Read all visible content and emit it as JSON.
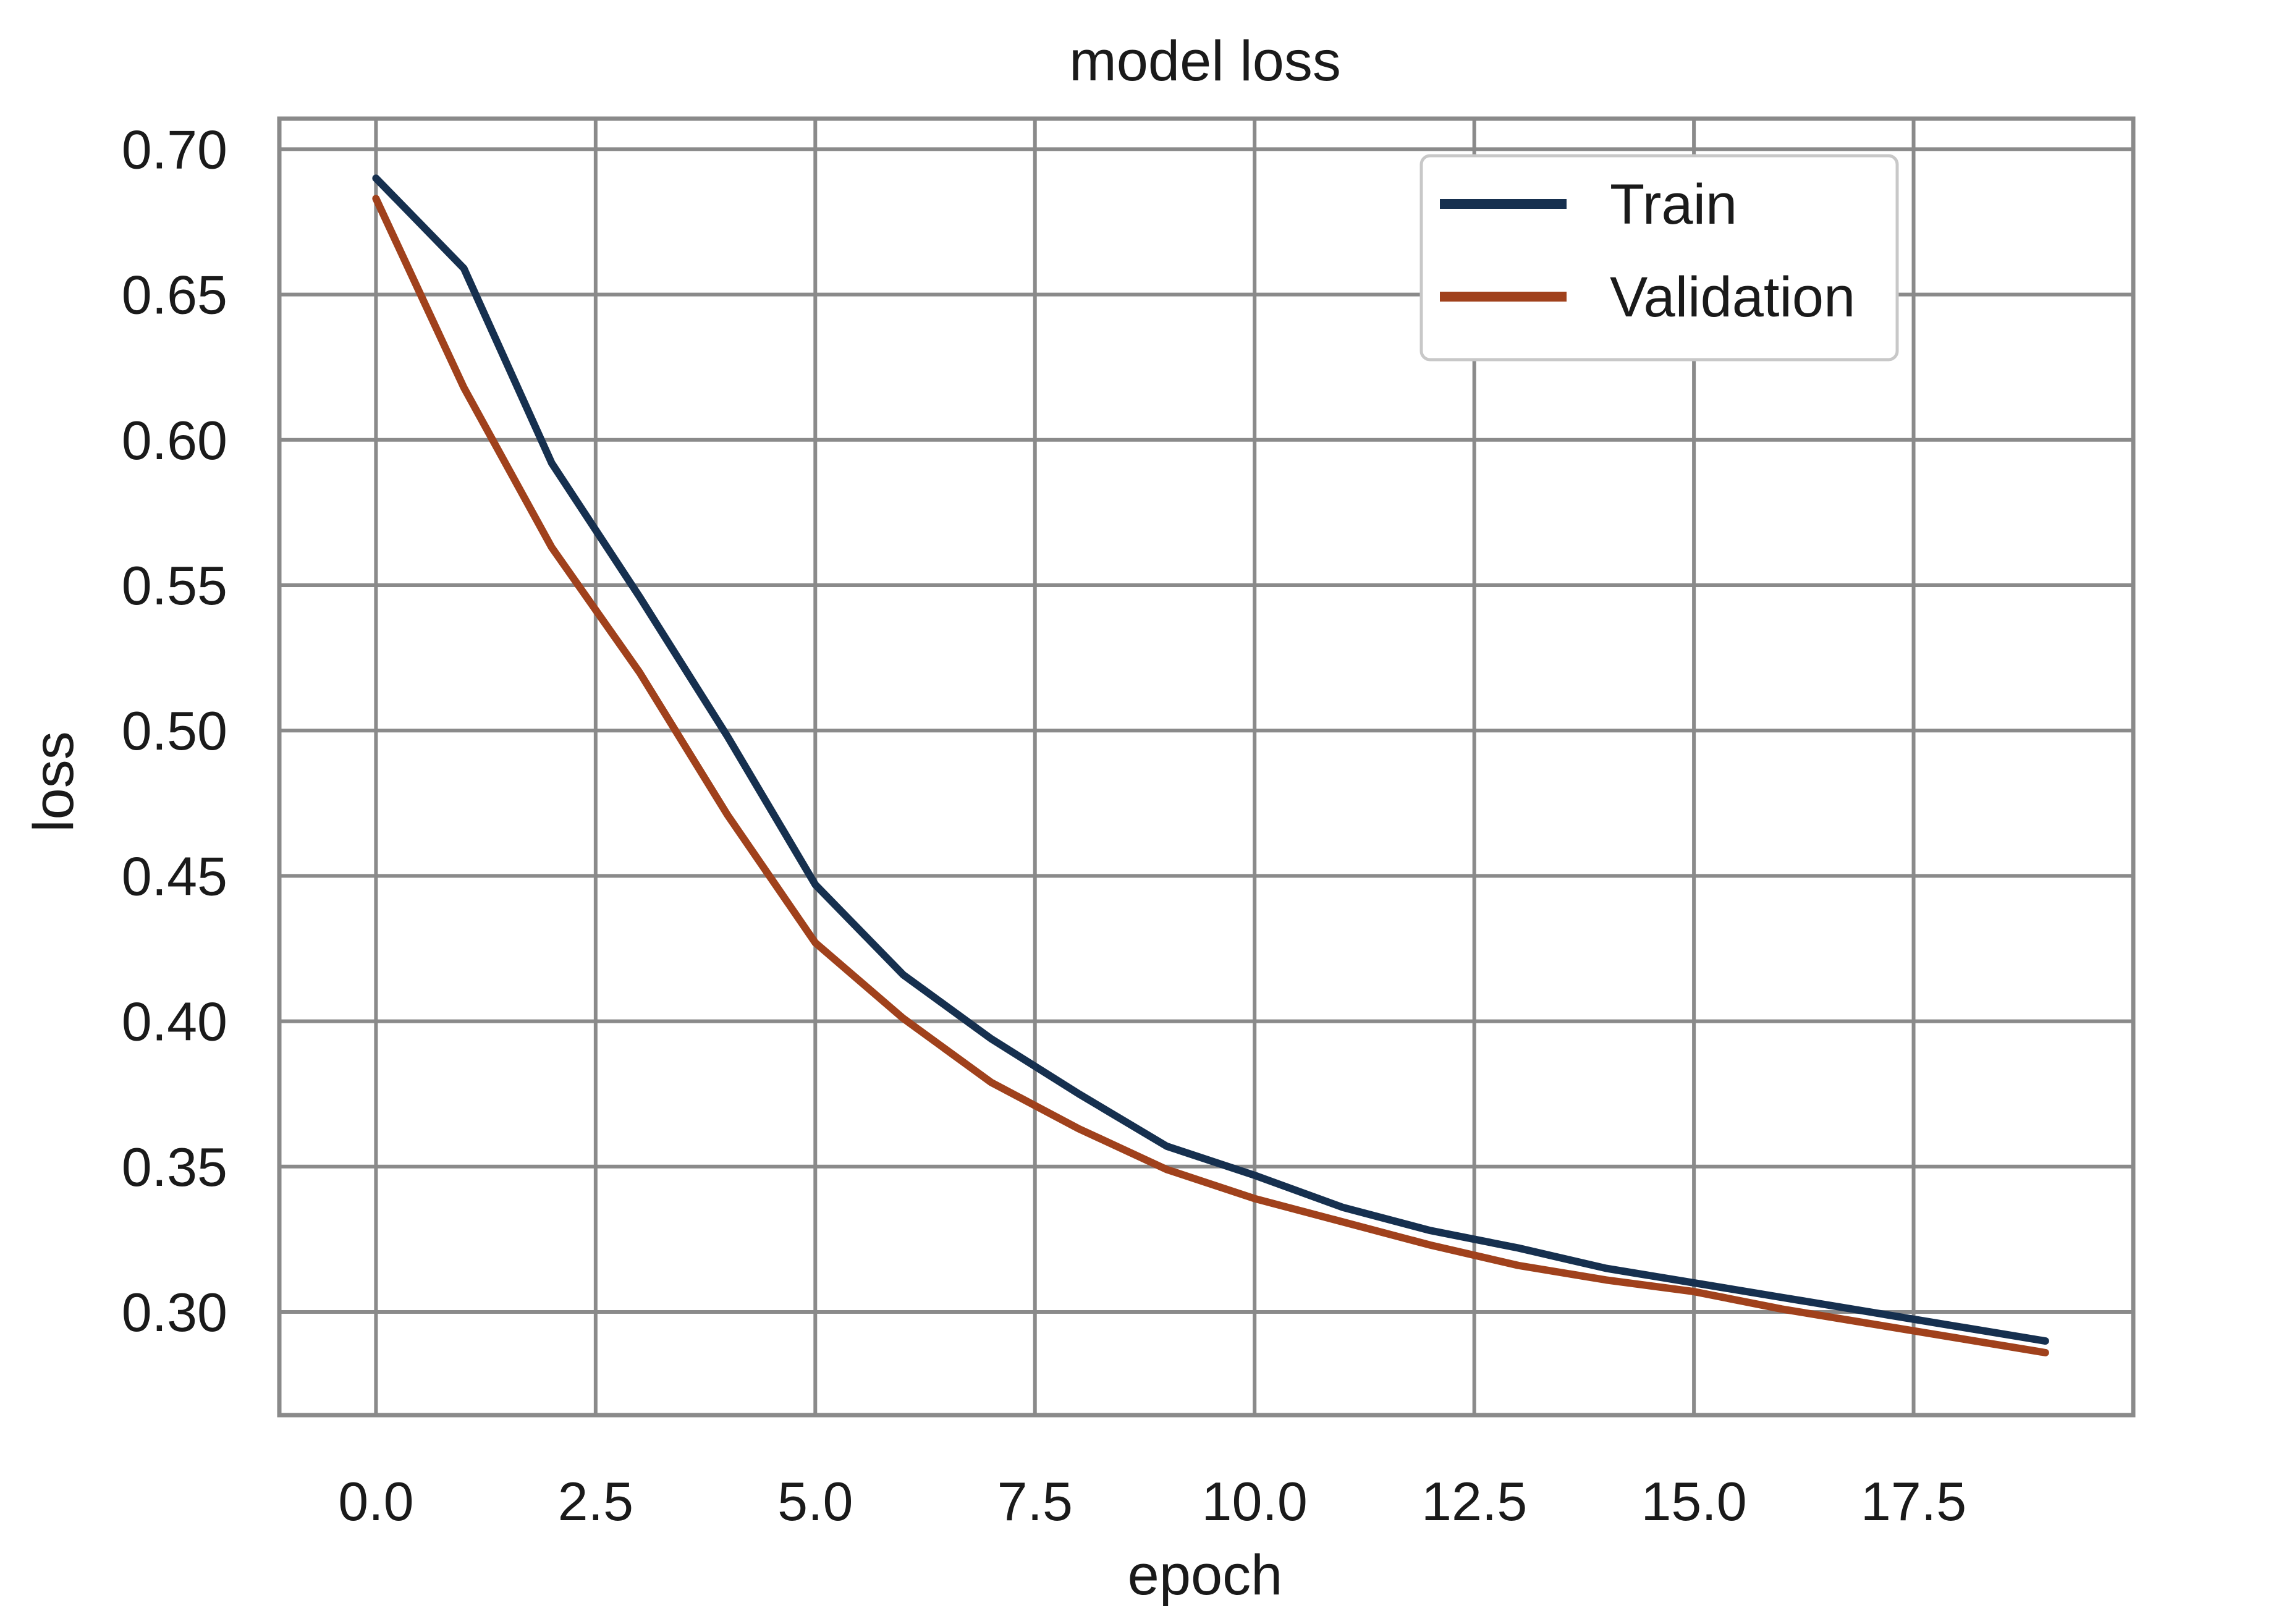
{
  "chart_data": {
    "type": "line",
    "title": "model loss",
    "xlabel": "epoch",
    "ylabel": "loss",
    "xlim": [
      -1.1,
      20.0
    ],
    "ylim": [
      0.2645,
      0.7105
    ],
    "xticks": [
      0.0,
      2.5,
      5.0,
      7.5,
      10.0,
      12.5,
      15.0,
      17.5
    ],
    "xtick_labels": [
      "0.0",
      "2.5",
      "5.0",
      "7.5",
      "10.0",
      "12.5",
      "15.0",
      "17.5"
    ],
    "yticks": [
      0.3,
      0.35,
      0.4,
      0.45,
      0.5,
      0.55,
      0.6,
      0.65,
      0.7
    ],
    "ytick_labels": [
      "0.30",
      "0.35",
      "0.40",
      "0.45",
      "0.50",
      "0.55",
      "0.60",
      "0.65",
      "0.70"
    ],
    "grid": true,
    "legend_position": "top-right",
    "x": [
      0,
      1,
      2,
      3,
      4,
      5,
      6,
      7,
      8,
      9,
      10,
      11,
      12,
      13,
      14,
      15,
      16,
      17,
      18,
      19
    ],
    "series": [
      {
        "name": "Train",
        "color": "#16304f",
        "values": [
          0.69,
          0.659,
          0.592,
          0.546,
          0.498,
          0.447,
          0.416,
          0.394,
          0.375,
          0.357,
          0.347,
          0.336,
          0.328,
          0.322,
          0.315,
          0.31,
          0.305,
          0.3,
          0.295,
          0.29
        ]
      },
      {
        "name": "Validation",
        "color": "#a0411c",
        "values": [
          0.683,
          0.618,
          0.563,
          0.52,
          0.471,
          0.427,
          0.401,
          0.379,
          0.363,
          0.349,
          0.339,
          0.331,
          0.323,
          0.316,
          0.311,
          0.307,
          0.301,
          0.296,
          0.291,
          0.286
        ]
      }
    ]
  }
}
